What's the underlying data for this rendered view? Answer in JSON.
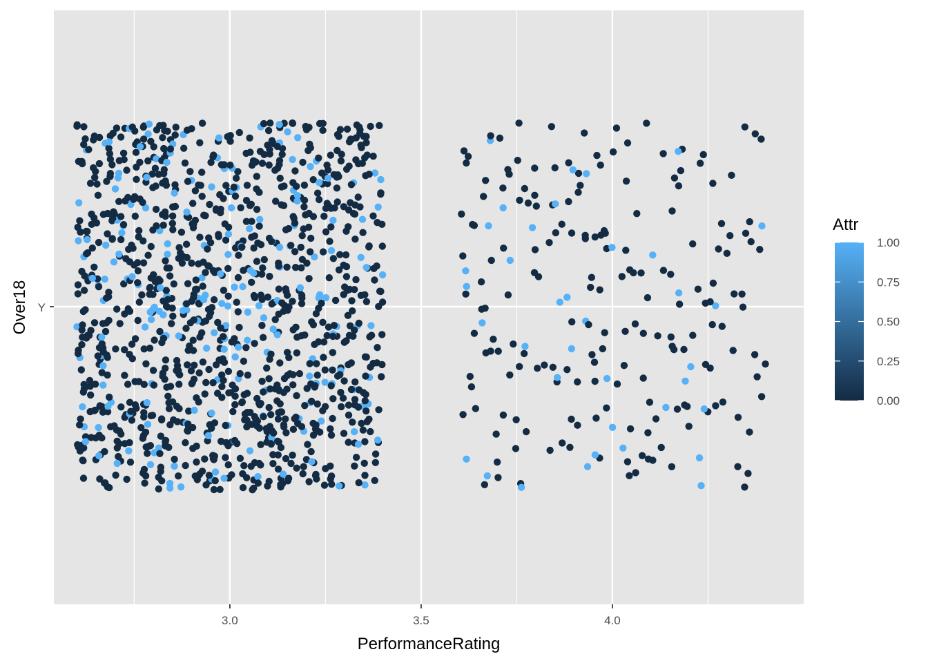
{
  "chart_data": {
    "type": "scatter",
    "title": "",
    "xlabel": "PerformanceRating",
    "ylabel": "Over18",
    "xlim": [
      2.54,
      4.5
    ],
    "x_ticks": [
      3.0,
      3.5,
      4.0
    ],
    "x_tick_labels": [
      "3.0",
      "3.5",
      "4.0"
    ],
    "y_categories": [
      "Y"
    ],
    "jitter": "points jittered horizontally (±0.4) and vertically (±0.4) around the category positions",
    "grid": true,
    "panel_background": "#e5e5e5",
    "grid_color": "#ffffff",
    "color_scale": {
      "variable": "Attr",
      "low": "#132b43",
      "high": "#56b1f7",
      "range": [
        0.0,
        1.0
      ],
      "breaks": [
        "0.00",
        "0.25",
        "0.50",
        "0.75",
        "1.00"
      ]
    },
    "legend": {
      "title": "Attr",
      "position": "right"
    },
    "series": [
      {
        "x_category": 3,
        "y_category": "Y",
        "count": 1244,
        "attr_1_count": 200
      },
      {
        "x_category": 4,
        "y_category": "Y",
        "count": 226,
        "attr_1_count": 37
      }
    ]
  }
}
